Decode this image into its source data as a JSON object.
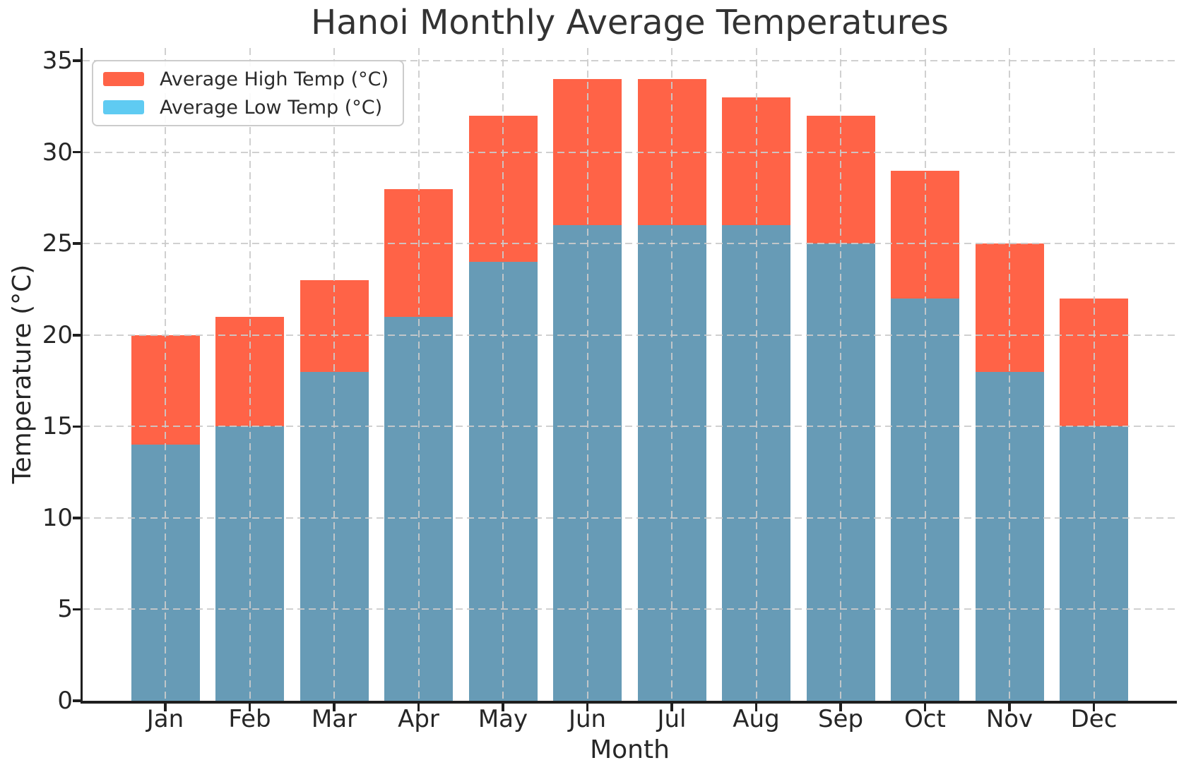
{
  "chart_data": {
    "type": "bar",
    "bars_overlap": true,
    "title": "Hanoi Monthly Average Temperatures",
    "xlabel": "Month",
    "ylabel": "Temperature (°C)",
    "categories": [
      "Jan",
      "Feb",
      "Mar",
      "Apr",
      "May",
      "Jun",
      "Jul",
      "Aug",
      "Sep",
      "Oct",
      "Nov",
      "Dec"
    ],
    "series": [
      {
        "name": "Average High Temp (°C)",
        "legend_color": "#FF6347",
        "bar_color": "#FF6347",
        "values": [
          20,
          21,
          23,
          28,
          32,
          34,
          34,
          33,
          32,
          29,
          25,
          22
        ]
      },
      {
        "name": "Average Low Temp (°C)",
        "legend_color": "#5FCBF2",
        "bar_color": "#679BB6",
        "values": [
          14,
          15,
          18,
          21,
          24,
          26,
          26,
          26,
          25,
          22,
          18,
          15
        ]
      }
    ],
    "ylim": [
      0,
      35.7
    ],
    "yticks": [
      0,
      5,
      10,
      15,
      20,
      25,
      30,
      35
    ],
    "grid": {
      "horizontal": true,
      "vertical": true,
      "style": "dashed",
      "color": "#cbcbcb",
      "drawn_above_bars": true
    },
    "legend": {
      "position": "upper left"
    },
    "axis_text_color": "#262626",
    "spine_color": "#1f1f1f",
    "background": "#ffffff"
  }
}
